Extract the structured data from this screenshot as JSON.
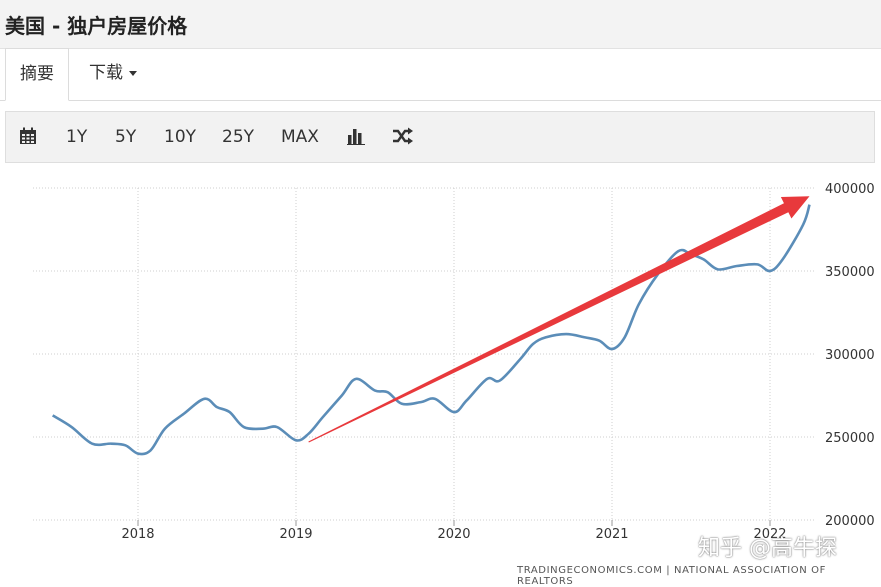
{
  "header": {
    "title": "美国 - 独户房屋价格"
  },
  "tabs": [
    {
      "label": "摘要"
    },
    {
      "label": "下载"
    }
  ],
  "toolbar": {
    "icons": [
      "calendar-icon",
      "bar-chart-icon",
      "shuffle-icon"
    ],
    "ranges": [
      "1Y",
      "5Y",
      "10Y",
      "25Y",
      "MAX"
    ]
  },
  "chart_data": {
    "type": "line",
    "title": "",
    "xlabel": "",
    "ylabel": "",
    "x_ticks": [
      "2018",
      "2019",
      "2020",
      "2021",
      "2022"
    ],
    "y_ticks": [
      "400000",
      "350000",
      "300000",
      "250000",
      "200000"
    ],
    "ylim": [
      200000,
      400000
    ],
    "xlim": [
      2017.42,
      2022.38
    ],
    "grid": true,
    "series": [
      {
        "color": "#5b8db8",
        "points": [
          [
            2017.46,
            263000
          ],
          [
            2017.58,
            256000
          ],
          [
            2017.71,
            246000
          ],
          [
            2017.83,
            246000
          ],
          [
            2017.92,
            245000
          ],
          [
            2018.0,
            240000
          ],
          [
            2018.08,
            242000
          ],
          [
            2018.17,
            255000
          ],
          [
            2018.29,
            264000
          ],
          [
            2018.42,
            273000
          ],
          [
            2018.5,
            268000
          ],
          [
            2018.58,
            265000
          ],
          [
            2018.67,
            256000
          ],
          [
            2018.79,
            255000
          ],
          [
            2018.88,
            256000
          ],
          [
            2019.0,
            248000
          ],
          [
            2019.08,
            252000
          ],
          [
            2019.17,
            262000
          ],
          [
            2019.29,
            275000
          ],
          [
            2019.38,
            285000
          ],
          [
            2019.5,
            278000
          ],
          [
            2019.58,
            277000
          ],
          [
            2019.67,
            270000
          ],
          [
            2019.79,
            271000
          ],
          [
            2019.88,
            273000
          ],
          [
            2020.0,
            265000
          ],
          [
            2020.08,
            272000
          ],
          [
            2020.21,
            285000
          ],
          [
            2020.29,
            284000
          ],
          [
            2020.42,
            297000
          ],
          [
            2020.5,
            306000
          ],
          [
            2020.58,
            310000
          ],
          [
            2020.71,
            312000
          ],
          [
            2020.83,
            310000
          ],
          [
            2020.92,
            308000
          ],
          [
            2021.0,
            303000
          ],
          [
            2021.08,
            310000
          ],
          [
            2021.17,
            330000
          ],
          [
            2021.29,
            348000
          ],
          [
            2021.42,
            362000
          ],
          [
            2021.5,
            360000
          ],
          [
            2021.58,
            357000
          ],
          [
            2021.67,
            351000
          ],
          [
            2021.79,
            353000
          ],
          [
            2021.92,
            354000
          ],
          [
            2022.0,
            350000
          ],
          [
            2022.08,
            357000
          ],
          [
            2022.21,
            378000
          ],
          [
            2022.25,
            390000
          ]
        ]
      }
    ],
    "annotations": [
      {
        "type": "arrow",
        "color": "#e8393c",
        "from": [
          2019.08,
          247000
        ],
        "to": [
          2022.25,
          395000
        ]
      }
    ],
    "source": "TRADINGECONOMICS.COM  |  NATIONAL ASSOCIATION OF REALTORS"
  },
  "watermark": "知乎 @高牛探"
}
